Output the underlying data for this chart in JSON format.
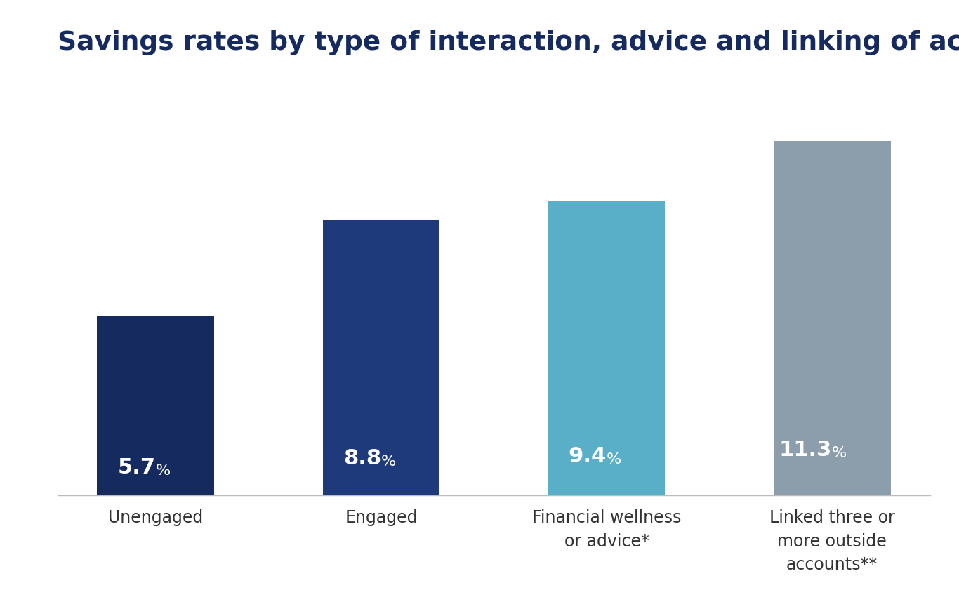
{
  "title": "Savings rates by type of interaction, advice and linking of accounts",
  "categories": [
    "Unengaged",
    "Engaged",
    "Financial wellness\nor advice*",
    "Linked three or\nmore outside\naccounts**"
  ],
  "values": [
    5.7,
    8.8,
    9.4,
    11.3
  ],
  "bar_colors": [
    "#152a5e",
    "#1e3a7a",
    "#5aafc8",
    "#8c9eab"
  ],
  "bar_labels": [
    "5.7",
    "8.8",
    "9.4",
    "11.3"
  ],
  "label_color": "#ffffff",
  "title_color": "#152a5e",
  "title_fontsize": 27,
  "label_fontsize": 22,
  "pct_fontsize": 16,
  "tick_fontsize": 17,
  "ylim": [
    0,
    13.5
  ],
  "background_color": "#ffffff",
  "bar_width": 0.52
}
